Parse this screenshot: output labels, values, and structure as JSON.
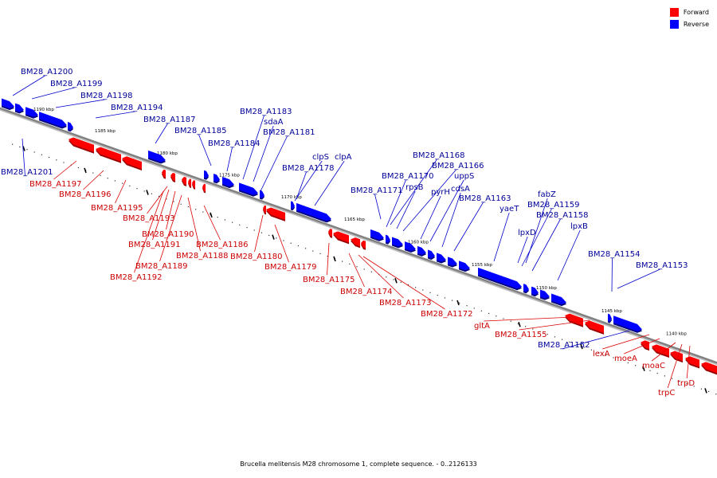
{
  "legend": {
    "forward_label": "Forward",
    "reverse_label": "Reverse",
    "forward_color": "#ff0000",
    "reverse_color": "#0000ff"
  },
  "caption": "Brucella melitensis M28 chromosome 1, complete sequence. - 0..2126133",
  "colors": {
    "axis": "#808080",
    "label_forward": "#cc0000",
    "label_reverse": "#000099"
  },
  "scale_labels": [
    "1190 kbp",
    "1185 kbp",
    "1180 kbp",
    "1175 kbp",
    "1170 kbp",
    "1165 kbp",
    "1160 kbp",
    "1155 kbp",
    "1150 kbp",
    "1145 kbp",
    "1140 kbp"
  ],
  "genes": [
    {
      "name": "BM28_A1200",
      "strand": "reverse"
    },
    {
      "name": "BM28_A1199",
      "strand": "reverse"
    },
    {
      "name": "BM28_A1198",
      "strand": "reverse"
    },
    {
      "name": "BM28_A1194",
      "strand": "reverse"
    },
    {
      "name": "BM28_A1187",
      "strand": "reverse"
    },
    {
      "name": "BM28_A1185",
      "strand": "reverse"
    },
    {
      "name": "BM28_A1184",
      "strand": "reverse"
    },
    {
      "name": "BM28_A1183",
      "strand": "reverse"
    },
    {
      "name": "sdaA",
      "strand": "reverse"
    },
    {
      "name": "BM28_A1181",
      "strand": "reverse"
    },
    {
      "name": "BM28_A1178",
      "strand": "reverse"
    },
    {
      "name": "clpS",
      "strand": "reverse"
    },
    {
      "name": "clpA",
      "strand": "reverse"
    },
    {
      "name": "BM28_A1201",
      "strand": "reverse"
    },
    {
      "name": "BM28_A1168",
      "strand": "reverse"
    },
    {
      "name": "BM28_A1166",
      "strand": "reverse"
    },
    {
      "name": "BM28_A1170",
      "strand": "reverse"
    },
    {
      "name": "uppS",
      "strand": "reverse"
    },
    {
      "name": "rpsB",
      "strand": "reverse"
    },
    {
      "name": "cdsA",
      "strand": "reverse"
    },
    {
      "name": "BM28_A1171",
      "strand": "reverse"
    },
    {
      "name": "pyrH",
      "strand": "reverse"
    },
    {
      "name": "BM28_A1163",
      "strand": "reverse"
    },
    {
      "name": "fabZ",
      "strand": "reverse"
    },
    {
      "name": "yaeT",
      "strand": "reverse"
    },
    {
      "name": "BM28_A1159",
      "strand": "reverse"
    },
    {
      "name": "BM28_A1158",
      "strand": "reverse"
    },
    {
      "name": "lpxD",
      "strand": "reverse"
    },
    {
      "name": "lpxB",
      "strand": "reverse"
    },
    {
      "name": "BM28_A1154",
      "strand": "reverse"
    },
    {
      "name": "BM28_A1153",
      "strand": "reverse"
    },
    {
      "name": "BM28_A1152",
      "strand": "reverse"
    },
    {
      "name": "BM28_A1197",
      "strand": "forward"
    },
    {
      "name": "BM28_A1196",
      "strand": "forward"
    },
    {
      "name": "BM28_A1195",
      "strand": "forward"
    },
    {
      "name": "BM28_A1193",
      "strand": "forward"
    },
    {
      "name": "BM28_A1190",
      "strand": "forward"
    },
    {
      "name": "BM28_A1191",
      "strand": "forward"
    },
    {
      "name": "BM28_A1188",
      "strand": "forward"
    },
    {
      "name": "BM28_A1189",
      "strand": "forward"
    },
    {
      "name": "BM28_A1192",
      "strand": "forward"
    },
    {
      "name": "BM28_A1186",
      "strand": "forward"
    },
    {
      "name": "BM28_A1180",
      "strand": "forward"
    },
    {
      "name": "BM28_A1179",
      "strand": "forward"
    },
    {
      "name": "BM28_A1175",
      "strand": "forward"
    },
    {
      "name": "BM28_A1174",
      "strand": "forward"
    },
    {
      "name": "BM28_A1173",
      "strand": "forward"
    },
    {
      "name": "BM28_A1172",
      "strand": "forward"
    },
    {
      "name": "gltA",
      "strand": "forward"
    },
    {
      "name": "BM28_A1155",
      "strand": "forward"
    },
    {
      "name": "lexA",
      "strand": "forward"
    },
    {
      "name": "moeA",
      "strand": "forward"
    },
    {
      "name": "moaC",
      "strand": "forward"
    },
    {
      "name": "trpD",
      "strand": "forward"
    },
    {
      "name": "trpC",
      "strand": "forward"
    }
  ]
}
